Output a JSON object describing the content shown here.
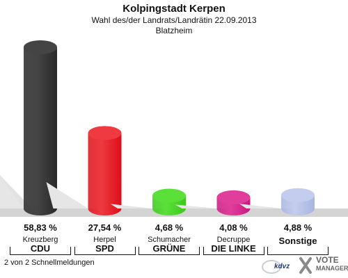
{
  "header": {
    "title": "Kolpingstadt Kerpen",
    "subtitle": "Wahl des/der Landrats/Landrätin 22.09.2013",
    "place": "Blatzheim"
  },
  "chart_data": {
    "type": "bar",
    "ylim": [
      0,
      60
    ],
    "bars": [
      {
        "candidate": "Kreuzberg",
        "party": "CDU",
        "value": 58.83,
        "label": "58,83 %",
        "color": "#2a2a2a",
        "top_color": "#444444"
      },
      {
        "candidate": "Herpel",
        "party": "SPD",
        "value": 27.54,
        "label": "27,54 %",
        "color": "#dd0e18",
        "top_color": "#ee3a40"
      },
      {
        "candidate": "Schumacher",
        "party": "GRÜNE",
        "value": 4.68,
        "label": "4,68 %",
        "color": "#3cc81a",
        "top_color": "#5be03a"
      },
      {
        "candidate": "Decruppe",
        "party": "DIE LINKE",
        "value": 4.08,
        "label": "4,08 %",
        "color": "#c8197e",
        "top_color": "#e13e9c"
      },
      {
        "candidate": "",
        "party": "Sonstige",
        "value": 4.88,
        "label": "4,88 %",
        "color": "#a9b5e0",
        "top_color": "#c4cdee"
      }
    ]
  },
  "footer": {
    "note": "2 von 2 Schnellmeldungen",
    "logo_left": "kdvz",
    "logo_vote": "VOTE",
    "logo_manager": "MANAGER"
  }
}
